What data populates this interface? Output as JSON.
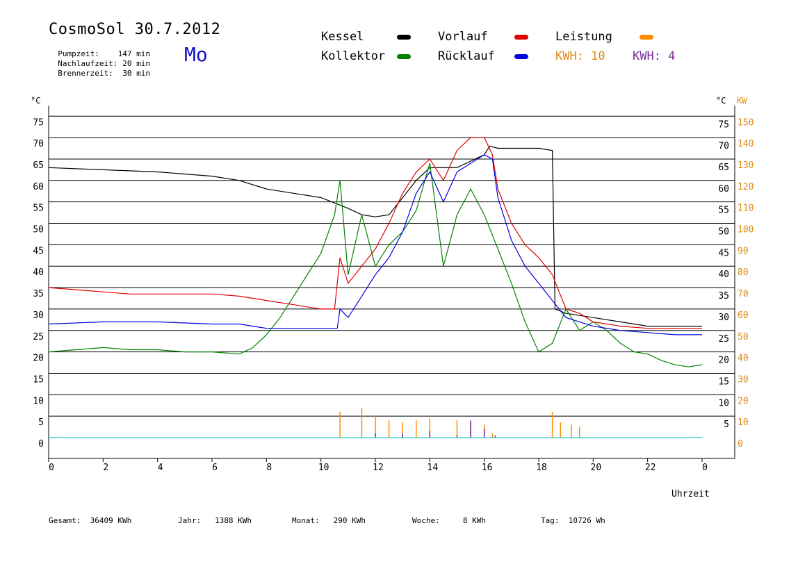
{
  "header": {
    "title": "CosmoSol 30.7.2012",
    "params": [
      {
        "label": "Pumpzeit:",
        "value": "147 min"
      },
      {
        "label": "Nachlaufzeit:",
        "value": "20 min"
      },
      {
        "label": "Brennerzeit:",
        "value": "30 min"
      }
    ],
    "weekday": "Mo"
  },
  "legend": {
    "items": [
      {
        "label": "Kessel",
        "color": "#000000"
      },
      {
        "label": "Kollektor",
        "color": "#008000"
      },
      {
        "label": "Vorlauf",
        "color": "#e00000"
      },
      {
        "label": "Rücklauf",
        "color": "#0000e0"
      },
      {
        "label": "Leistung",
        "color": "#ff8c00"
      }
    ],
    "kwh_orange": "KWH: 10",
    "kwh_purple": "KWH: 4",
    "kwh_orange_color": "#e08a10",
    "kwh_purple_color": "#7a2a9a"
  },
  "footer": [
    {
      "label": "Gesamt:",
      "value": "36409 KWh"
    },
    {
      "label": "Jahr:",
      "value": "1388 KWh"
    },
    {
      "label": "Monat:",
      "value": "290 KWh"
    },
    {
      "label": "Woche:",
      "value": "8 KWh"
    },
    {
      "label": "Tag:",
      "value": "10726 Wh"
    }
  ],
  "chart_data": {
    "type": "line",
    "xlabel": "Uhrzeit",
    "ylabel_left": "°C",
    "ylabel_right_temp": "°C",
    "ylabel_right_power": "KW",
    "xlim": [
      0,
      24
    ],
    "x_ticks": [
      "0",
      "2",
      "4",
      "6",
      "8",
      "10",
      "12",
      "14",
      "16",
      "18",
      "20",
      "22",
      "0"
    ],
    "y_left_ticks": [
      0,
      5,
      10,
      15,
      20,
      25,
      30,
      35,
      40,
      45,
      50,
      55,
      60,
      65,
      70,
      75
    ],
    "y_right_temp_ticks": [
      5,
      10,
      15,
      20,
      25,
      30,
      35,
      40,
      45,
      50,
      55,
      60,
      65,
      70,
      75
    ],
    "y_right_power_ticks": [
      0,
      10,
      20,
      30,
      40,
      50,
      60,
      70,
      80,
      90,
      100,
      110,
      120,
      130,
      140,
      150
    ],
    "grid": "horizontal",
    "series": [
      {
        "name": "Kessel",
        "color": "#000000",
        "x": [
          0,
          2,
          4,
          6,
          7,
          8,
          9,
          10,
          11,
          11.5,
          12,
          12.5,
          13,
          13.5,
          14,
          15,
          16,
          16.2,
          16.5,
          17,
          18,
          18.5,
          18.6,
          19,
          20,
          21,
          22,
          23,
          24
        ],
        "y": [
          63,
          62.5,
          62,
          61,
          60,
          58,
          57,
          56,
          53.5,
          52,
          51.5,
          52,
          56,
          60,
          63,
          63,
          66,
          68,
          67.5,
          67.5,
          67.5,
          67,
          30,
          29,
          28,
          27,
          26,
          26,
          26
        ]
      },
      {
        "name": "Kollektor",
        "color": "#008000",
        "x": [
          0,
          1,
          2,
          3,
          4,
          5,
          6,
          7,
          7.5,
          8,
          8.5,
          9,
          9.5,
          10,
          10.5,
          10.7,
          11,
          11.5,
          12,
          12.5,
          13,
          13.5,
          14,
          14.5,
          15,
          15.5,
          16,
          16.5,
          17,
          17.5,
          18,
          18.5,
          19,
          19.5,
          20,
          20.5,
          21,
          21.5,
          22,
          22.5,
          23,
          23.5,
          24
        ],
        "y": [
          20,
          20.5,
          21,
          20.5,
          20.5,
          20,
          20,
          19.5,
          21,
          24,
          28,
          33,
          38,
          43,
          52,
          60,
          38,
          52,
          40,
          45,
          48,
          53,
          64,
          40,
          52,
          58,
          52,
          44,
          36,
          27,
          20,
          22,
          30,
          25,
          27,
          25,
          22,
          20,
          19.5,
          18,
          17,
          16.5,
          17
        ]
      },
      {
        "name": "Vorlauf",
        "color": "#e00000",
        "x": [
          0,
          1,
          2,
          3,
          4,
          5,
          6,
          7,
          8,
          9,
          9.5,
          10,
          10.5,
          10.7,
          11,
          11.5,
          12,
          12.5,
          13,
          13.5,
          14,
          14.5,
          15,
          15.5,
          16,
          16.3,
          16.5,
          17,
          17.5,
          18,
          18.5,
          19,
          19.5,
          20,
          21,
          22,
          23,
          24
        ],
        "y": [
          35,
          34.5,
          34,
          33.5,
          33.5,
          33.5,
          33.5,
          33,
          32,
          31,
          30.5,
          30,
          30,
          42,
          36,
          40,
          44,
          50,
          57,
          62,
          65,
          60,
          67,
          70,
          70,
          66,
          58,
          50,
          45,
          42,
          38,
          30,
          29,
          27,
          26,
          25.5,
          25.5,
          25.5
        ]
      },
      {
        "name": "Rücklauf",
        "color": "#0000e0",
        "x": [
          0,
          2,
          4,
          6,
          7,
          7.5,
          8,
          9,
          10,
          10.6,
          10.7,
          11,
          11.5,
          12,
          12.5,
          13,
          13.5,
          14,
          14.5,
          15,
          15.5,
          16,
          16.3,
          16.5,
          17,
          17.5,
          18,
          18.5,
          19,
          19.5,
          20,
          21,
          22,
          23,
          24
        ],
        "y": [
          26.5,
          27,
          27,
          26.5,
          26.5,
          26,
          25.5,
          25.5,
          25.5,
          25.5,
          30,
          28,
          33,
          38,
          42,
          48,
          57,
          62,
          55,
          62,
          64,
          66,
          65,
          56,
          46,
          40,
          36,
          32,
          28,
          27,
          26,
          25,
          24.5,
          24,
          24
        ]
      },
      {
        "name": "Leistung",
        "color": "#ff8c00",
        "axis": "power",
        "x": [
          10.7,
          11.5,
          12,
          12.5,
          13,
          13.5,
          14,
          15,
          15.5,
          16,
          16.3,
          18.5,
          18.8,
          19.2,
          19.5
        ],
        "y": [
          12,
          14,
          10,
          8,
          7,
          8,
          9,
          8,
          7,
          6,
          2,
          12,
          7,
          6,
          5
        ]
      },
      {
        "name": "KWH 4",
        "color": "#7a2a9a",
        "axis": "power",
        "x": [
          12,
          13,
          14,
          15,
          15.5,
          16,
          16.4
        ],
        "y": [
          2,
          2,
          3,
          1,
          8,
          4,
          1
        ]
      },
      {
        "name": "Pumpe",
        "color": "#20c8c8",
        "axis": "power",
        "x": [
          0,
          24
        ],
        "y": [
          0,
          0
        ]
      }
    ]
  }
}
